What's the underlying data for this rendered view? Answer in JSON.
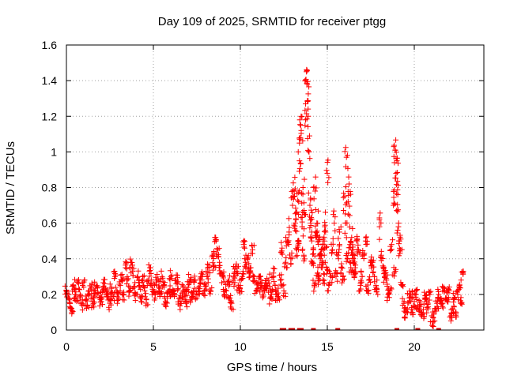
{
  "chart_data": {
    "type": "scatter",
    "title": "Day 109 of 2025, SRMTID for receiver ptgg",
    "xlabel": "GPS time / hours",
    "ylabel": "SRMTID / TECUs",
    "xlim": [
      0,
      24
    ],
    "ylim": [
      0,
      1.6
    ],
    "xticks": [
      0,
      5,
      10,
      15,
      20
    ],
    "xtick_labels": [
      "0",
      "5",
      "10",
      "15",
      "20"
    ],
    "yticks": [
      0,
      0.2,
      0.4,
      0.6,
      0.8,
      1.0,
      1.2,
      1.4,
      1.6
    ],
    "ytick_labels": [
      "0",
      "0.2",
      "0.4",
      "0.6",
      "0.8",
      "1",
      "1.2",
      "1.4",
      "1.6"
    ],
    "grid": true,
    "marker": "+",
    "color": "#ff0000",
    "series": [
      {
        "name": "SRMTID",
        "x": [
          0.0,
          0.2,
          0.4,
          0.6,
          0.8,
          1.0,
          1.2,
          1.4,
          1.6,
          1.8,
          2.0,
          2.2,
          2.4,
          2.6,
          2.8,
          3.0,
          3.2,
          3.4,
          3.6,
          3.8,
          4.0,
          4.2,
          4.4,
          4.6,
          4.8,
          5.0,
          5.2,
          5.4,
          5.6,
          5.8,
          6.0,
          6.2,
          6.4,
          6.6,
          6.8,
          7.0,
          7.2,
          7.4,
          7.6,
          7.8,
          8.0,
          8.2,
          8.4,
          8.6,
          8.8,
          9.0,
          9.2,
          9.4,
          9.6,
          9.8,
          10.0,
          10.2,
          10.4,
          10.6,
          10.8,
          11.0,
          11.2,
          11.4,
          11.6,
          11.8,
          12.0,
          12.2,
          12.4,
          12.6,
          12.8,
          13.0,
          13.1,
          13.2,
          13.3,
          13.4,
          13.5,
          13.6,
          13.7,
          13.8,
          13.9,
          14.0,
          14.1,
          14.2,
          14.3,
          14.4,
          14.5,
          14.6,
          14.7,
          14.8,
          14.9,
          15.0,
          15.2,
          15.4,
          15.6,
          15.8,
          16.0,
          16.1,
          16.2,
          16.3,
          16.4,
          16.5,
          16.6,
          16.8,
          17.0,
          17.2,
          17.4,
          17.6,
          17.8,
          18.0,
          18.2,
          18.4,
          18.6,
          18.8,
          18.9,
          19.0,
          19.1,
          19.2,
          19.4,
          19.6,
          19.8,
          20.0,
          20.2,
          20.4,
          20.6,
          20.8,
          21.0,
          21.2,
          21.4,
          21.6,
          21.8,
          22.0,
          22.2,
          22.4,
          22.6,
          22.8
        ],
        "y": [
          0.22,
          0.15,
          0.25,
          0.18,
          0.2,
          0.27,
          0.14,
          0.23,
          0.19,
          0.21,
          0.16,
          0.26,
          0.2,
          0.24,
          0.3,
          0.18,
          0.28,
          0.35,
          0.22,
          0.33,
          0.2,
          0.25,
          0.3,
          0.17,
          0.35,
          0.22,
          0.28,
          0.2,
          0.25,
          0.18,
          0.3,
          0.22,
          0.26,
          0.15,
          0.2,
          0.24,
          0.18,
          0.28,
          0.22,
          0.3,
          0.26,
          0.35,
          0.42,
          0.5,
          0.38,
          0.3,
          0.22,
          0.18,
          0.28,
          0.33,
          0.25,
          0.48,
          0.4,
          0.35,
          0.3,
          0.26,
          0.24,
          0.22,
          0.28,
          0.2,
          0.25,
          0.18,
          0.46,
          0.38,
          0.55,
          0.7,
          0.78,
          0.62,
          0.5,
          0.95,
          1.12,
          0.8,
          0.65,
          1.45,
          1.2,
          0.7,
          0.55,
          0.45,
          0.78,
          0.6,
          0.5,
          0.4,
          0.35,
          0.45,
          0.55,
          0.88,
          0.3,
          0.6,
          0.42,
          0.35,
          0.75,
          0.97,
          0.65,
          0.48,
          0.52,
          0.4,
          0.35,
          0.45,
          0.3,
          0.5,
          0.28,
          0.38,
          0.25,
          0.58,
          0.35,
          0.28,
          0.22,
          0.7,
          1.01,
          0.95,
          0.6,
          0.45,
          0.15,
          0.12,
          0.2,
          0.16,
          0.14,
          0.1,
          0.18,
          0.13,
          0.08,
          0.12,
          0.2,
          0.15,
          0.18,
          0.22,
          0.12,
          0.1,
          0.25,
          0.33
        ],
        "extra": {
          "x": [
            0.1,
            0.3,
            0.5,
            0.7,
            0.9,
            1.1,
            1.3,
            1.5,
            1.7,
            1.9,
            2.1,
            2.3,
            2.5,
            2.7,
            2.9,
            3.1,
            3.3,
            3.5,
            3.7,
            3.9,
            4.1,
            4.3,
            4.5,
            4.7,
            4.9,
            5.1,
            5.3,
            5.5,
            5.7,
            5.9,
            6.1,
            6.3,
            6.5,
            6.7,
            6.9,
            7.1,
            7.3,
            7.5,
            7.7,
            7.9,
            8.1,
            8.3,
            8.5,
            8.7,
            8.9,
            9.1,
            9.3,
            9.5,
            9.7,
            9.9,
            10.1,
            10.3,
            10.5,
            10.7,
            10.9,
            11.1,
            11.3,
            11.5,
            11.7,
            11.9,
            12.1,
            12.3,
            12.5,
            12.7,
            12.9,
            13.15,
            13.25,
            13.35,
            13.45,
            13.55,
            13.65,
            13.75,
            13.85,
            13.95,
            14.05,
            14.15,
            14.25,
            14.35,
            14.45,
            14.55,
            14.65,
            14.75,
            14.85,
            14.95,
            15.1,
            15.3,
            15.5,
            15.7,
            15.9,
            16.05,
            16.15,
            16.25,
            16.35,
            16.45,
            16.55,
            16.7,
            16.9,
            17.1,
            17.3,
            17.5,
            17.7,
            17.9,
            18.1,
            18.3,
            18.5,
            18.7,
            18.85,
            18.95,
            19.05,
            19.15,
            19.3,
            19.5,
            19.7,
            19.9,
            20.1,
            20.3,
            20.5,
            20.7,
            20.9,
            21.1,
            21.3,
            21.5,
            21.7,
            21.9,
            22.1,
            22.3,
            22.5,
            22.7
          ],
          "y": [
            0.18,
            0.12,
            0.2,
            0.26,
            0.14,
            0.17,
            0.22,
            0.16,
            0.25,
            0.18,
            0.24,
            0.2,
            0.15,
            0.19,
            0.22,
            0.25,
            0.2,
            0.28,
            0.38,
            0.24,
            0.3,
            0.16,
            0.22,
            0.28,
            0.25,
            0.18,
            0.24,
            0.3,
            0.16,
            0.22,
            0.2,
            0.28,
            0.18,
            0.24,
            0.16,
            0.28,
            0.22,
            0.2,
            0.26,
            0.2,
            0.3,
            0.22,
            0.36,
            0.45,
            0.32,
            0.2,
            0.28,
            0.15,
            0.35,
            0.24,
            0.3,
            0.38,
            0.32,
            0.45,
            0.22,
            0.3,
            0.2,
            0.26,
            0.18,
            0.32,
            0.2,
            0.28,
            0.22,
            0.5,
            0.4,
            0.6,
            0.45,
            0.72,
            1.08,
            0.58,
            0.42,
            1.18,
            1.38,
            1.0,
            0.6,
            0.38,
            0.25,
            0.52,
            0.32,
            0.28,
            0.42,
            0.28,
            0.58,
            0.35,
            0.25,
            0.45,
            0.3,
            0.55,
            0.28,
            0.6,
            0.4,
            0.82,
            0.35,
            0.42,
            0.3,
            0.5,
            0.25,
            0.42,
            0.22,
            0.38,
            0.3,
            0.2,
            0.42,
            0.3,
            0.2,
            0.48,
            0.32,
            0.88,
            0.76,
            0.5,
            0.25,
            0.1,
            0.18,
            0.1,
            0.2,
            0.14,
            0.09,
            0.16,
            0.2,
            0.05,
            0.15,
            0.18,
            0.24,
            0.16,
            0.08,
            0.18,
            0.2,
            0.15
          ]
        }
      }
    ],
    "zero_markers_x": [
      12.4,
      12.5,
      12.9,
      13.0,
      13.4,
      13.5,
      14.2,
      15.6,
      19.0,
      20.2,
      21.4
    ]
  }
}
